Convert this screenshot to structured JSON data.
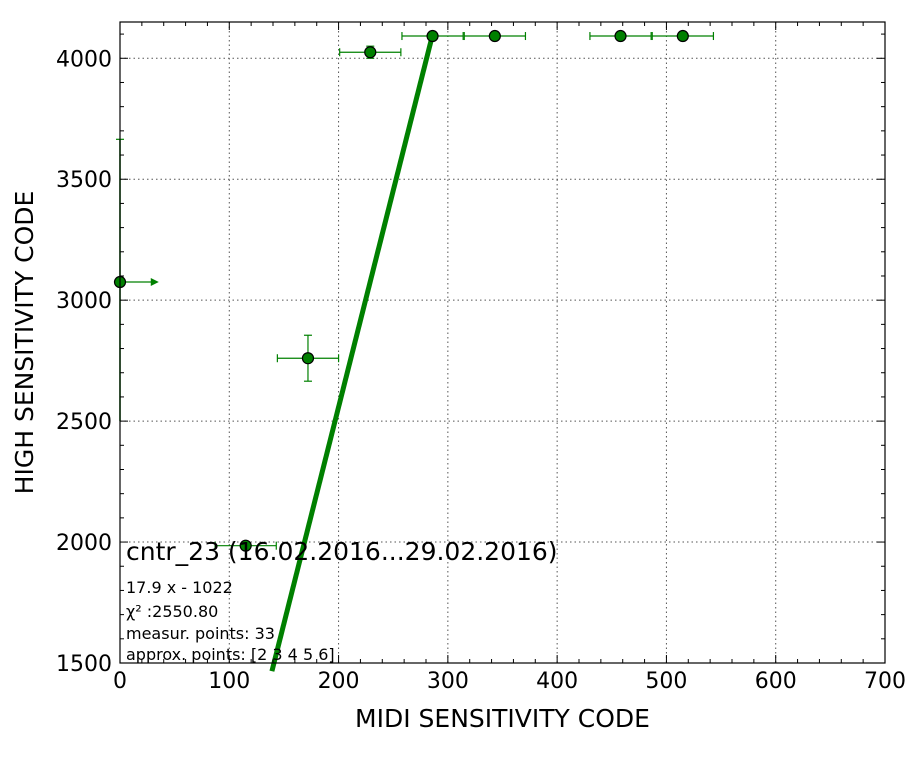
{
  "chart_data": {
    "type": "scatter",
    "xlabel": "MIDI SENSITIVITY CODE",
    "ylabel": "HIGH SENSITIVITY CODE",
    "xlim": [
      0,
      700
    ],
    "ylim": [
      1500,
      4150
    ],
    "x_ticks": [
      0,
      100,
      200,
      300,
      400,
      500,
      600,
      700
    ],
    "y_ticks": [
      1500,
      2000,
      2500,
      3000,
      3500,
      4000
    ],
    "grid": true,
    "colors": {
      "series": "#008000",
      "marker_edge": "#000000",
      "grid": "#555555"
    },
    "points": [
      {
        "x": 0,
        "y": 3075,
        "xerr_plus": 30,
        "xerr_minus": 0,
        "yerr": 0,
        "arrow_right": true
      },
      {
        "x": 115,
        "y": 1985,
        "xerr_plus": 28,
        "xerr_minus": 28,
        "yerr": 15
      },
      {
        "x": 172,
        "y": 2760,
        "xerr_plus": 28,
        "xerr_minus": 28,
        "yerr": 95
      },
      {
        "x": 229,
        "y": 4025,
        "xerr_plus": 28,
        "xerr_minus": 28,
        "yerr": 25
      },
      {
        "x": 286,
        "y": 4092,
        "xerr_plus": 28,
        "xerr_minus": 28,
        "yerr": 0
      },
      {
        "x": 343,
        "y": 4092,
        "xerr_plus": 28,
        "xerr_minus": 28,
        "yerr": 0
      },
      {
        "x": 458,
        "y": 4092,
        "xerr_plus": 28,
        "xerr_minus": 28,
        "yerr": 0
      },
      {
        "x": 515,
        "y": 4092,
        "xerr_plus": 28,
        "xerr_minus": 28,
        "yerr": 0
      }
    ],
    "vertical_error_at_x0": {
      "x": 0,
      "y_from": 2500,
      "y_to": 3665
    },
    "fit_line": {
      "slope": 17.9,
      "intercept": -1022,
      "x_from": 139,
      "x_to": 286
    },
    "annotation": {
      "title": "cntr_23 (16.02.2016...29.02.2016)",
      "lines": [
        "17.9 x - 1022",
        "χ² :2550.80",
        "measur. points: 33",
        "approx. points: [2 3 4 5 6]"
      ]
    }
  }
}
